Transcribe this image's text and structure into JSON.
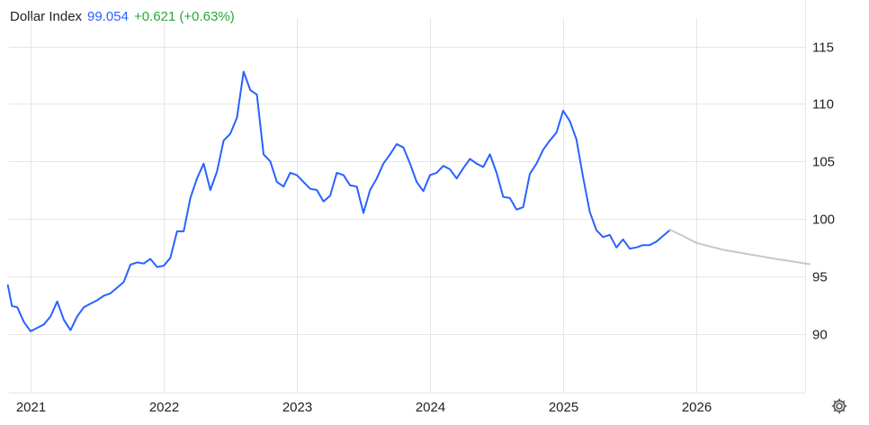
{
  "header": {
    "name": "Dollar Index",
    "value": "99.054",
    "change": "+0.621 (+0.63%)"
  },
  "colors": {
    "price_line": "#2962ff",
    "forecast_line": "#c8c8c8",
    "change_positive": "#25a83a",
    "grid": "#e6e6e6",
    "text": "#222222"
  },
  "icons": {
    "settings": "gear-icon"
  },
  "chart_data": {
    "type": "line",
    "title": "",
    "xlabel": "",
    "ylabel": "",
    "y_axis_position": "right",
    "grid": true,
    "ylim": [
      85.5,
      119
    ],
    "xlim": [
      2020.83,
      2026.85
    ],
    "y_ticks": [
      90,
      95,
      100,
      105,
      110,
      115
    ],
    "x_ticks": [
      2021,
      2022,
      2023,
      2024,
      2025,
      2026
    ],
    "x_tick_labels": [
      "2021",
      "2022",
      "2023",
      "2024",
      "2025",
      "2026"
    ],
    "series": [
      {
        "role": "history",
        "x": [
          2020.83,
          2020.86,
          2020.9,
          2020.95,
          2021.0,
          2021.05,
          2021.1,
          2021.15,
          2021.2,
          2021.25,
          2021.3,
          2021.35,
          2021.4,
          2021.45,
          2021.5,
          2021.55,
          2021.6,
          2021.65,
          2021.7,
          2021.75,
          2021.8,
          2021.85,
          2021.9,
          2021.95,
          2022.0,
          2022.05,
          2022.1,
          2022.15,
          2022.2,
          2022.25,
          2022.3,
          2022.35,
          2022.4,
          2022.45,
          2022.5,
          2022.55,
          2022.6,
          2022.65,
          2022.7,
          2022.75,
          2022.8,
          2022.85,
          2022.9,
          2022.95,
          2023.0,
          2023.05,
          2023.1,
          2023.15,
          2023.2,
          2023.25,
          2023.3,
          2023.35,
          2023.4,
          2023.45,
          2023.5,
          2023.55,
          2023.6,
          2023.65,
          2023.7,
          2023.75,
          2023.8,
          2023.85,
          2023.9,
          2023.95,
          2024.0,
          2024.05,
          2024.1,
          2024.15,
          2024.2,
          2024.25,
          2024.3,
          2024.35,
          2024.4,
          2024.45,
          2024.5,
          2024.55,
          2024.6,
          2024.65,
          2024.7,
          2024.75,
          2024.8,
          2024.85,
          2024.9,
          2024.95,
          2025.0,
          2025.05,
          2025.1,
          2025.15,
          2025.2,
          2025.25,
          2025.3,
          2025.35,
          2025.4,
          2025.45,
          2025.5,
          2025.55,
          2025.6,
          2025.65,
          2025.7,
          2025.75,
          2025.8
        ],
        "values": [
          94.2,
          92.4,
          92.3,
          91.0,
          90.2,
          90.5,
          90.8,
          91.5,
          92.8,
          91.2,
          90.3,
          91.5,
          92.3,
          92.6,
          92.9,
          93.3,
          93.5,
          94.0,
          94.5,
          96.0,
          96.2,
          96.1,
          96.5,
          95.8,
          95.9,
          96.6,
          98.9,
          98.9,
          101.8,
          103.5,
          104.8,
          102.5,
          104.1,
          106.8,
          107.4,
          108.8,
          112.8,
          111.2,
          110.8,
          105.6,
          105.0,
          103.2,
          102.8,
          104.0,
          103.8,
          103.2,
          102.6,
          102.5,
          101.5,
          102.0,
          104.0,
          103.8,
          102.9,
          102.8,
          100.5,
          102.5,
          103.5,
          104.8,
          105.6,
          106.5,
          106.2,
          104.8,
          103.2,
          102.4,
          103.8,
          104.0,
          104.6,
          104.3,
          103.5,
          104.4,
          105.2,
          104.8,
          104.5,
          105.6,
          104.0,
          101.9,
          101.8,
          100.8,
          101.0,
          103.9,
          104.8,
          106.0,
          106.8,
          107.5,
          109.4,
          108.5,
          106.9,
          103.6,
          100.6,
          99.0,
          98.4,
          98.6,
          97.5,
          98.2,
          97.4,
          97.5,
          97.7,
          97.7,
          98.0,
          98.5,
          99.0
        ]
      },
      {
        "role": "forecast",
        "x": [
          2025.8,
          2025.9,
          2026.0,
          2026.2,
          2026.4,
          2026.6,
          2026.85
        ],
        "values": [
          99.05,
          98.5,
          97.9,
          97.3,
          96.9,
          96.5,
          96.05
        ]
      }
    ]
  }
}
